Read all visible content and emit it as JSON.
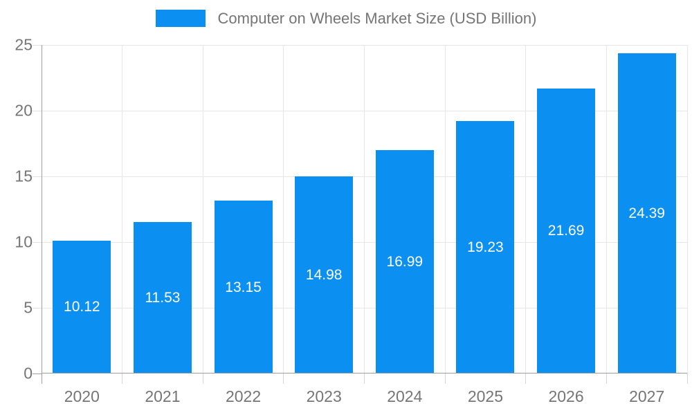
{
  "chart_data": {
    "type": "bar",
    "title": "Computer on Wheels Market Size (USD Billion)",
    "categories": [
      "2020",
      "2021",
      "2022",
      "2023",
      "2024",
      "2025",
      "2026",
      "2027"
    ],
    "values": [
      10.12,
      11.53,
      13.15,
      14.98,
      16.99,
      19.23,
      21.69,
      24.39
    ],
    "value_labels": [
      "10.12",
      "11.53",
      "13.15",
      "14.98",
      "16.99",
      "19.23",
      "21.69",
      "24.39"
    ],
    "xlabel": "",
    "ylabel": "",
    "ylim": [
      0,
      25
    ],
    "yticks": [
      0,
      5,
      10,
      15,
      20,
      25
    ],
    "grid": "on",
    "legend_position": "top",
    "colors": {
      "bar": "#0b90f2",
      "bar_value_text": "#ffffff",
      "axis_text": "#757575",
      "gridline": "#e6e6e6",
      "axis_line": "#9e9e9e"
    }
  }
}
